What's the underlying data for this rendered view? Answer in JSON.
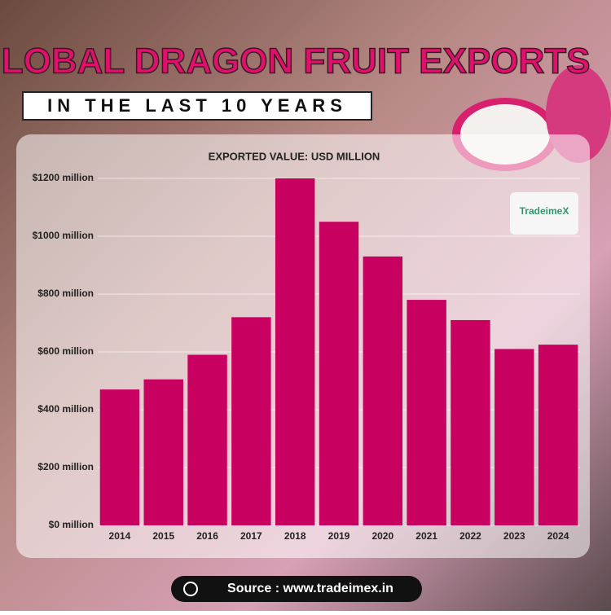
{
  "header": {
    "title": "GLOBAL DRAGON FRUIT EXPORTS",
    "subtitle": "IN THE LAST 10 YEARS",
    "logo": "TradeimeX"
  },
  "chart_data": {
    "type": "bar",
    "title": "EXPORTED VALUE: USD MILLION",
    "categories": [
      "2014",
      "2015",
      "2016",
      "2017",
      "2018",
      "2019",
      "2020",
      "2021",
      "2022",
      "2023",
      "2024"
    ],
    "values": [
      470,
      505,
      590,
      720,
      1200,
      1050,
      930,
      780,
      710,
      610,
      625
    ],
    "color": "#c8005f",
    "ylim": [
      0,
      1200
    ],
    "yticks": [
      {
        "value": 0,
        "label": "$0 million"
      },
      {
        "value": 200,
        "label": "$200 million"
      },
      {
        "value": 400,
        "label": "$400 million"
      },
      {
        "value": 600,
        "label": "$600 million"
      },
      {
        "value": 800,
        "label": "$800 million"
      },
      {
        "value": 1000,
        "label": "$1000 million"
      },
      {
        "value": 1200,
        "label": "$1200 million"
      }
    ],
    "grid": true
  },
  "footer": {
    "source": "Source : www.tradeimex.in"
  }
}
